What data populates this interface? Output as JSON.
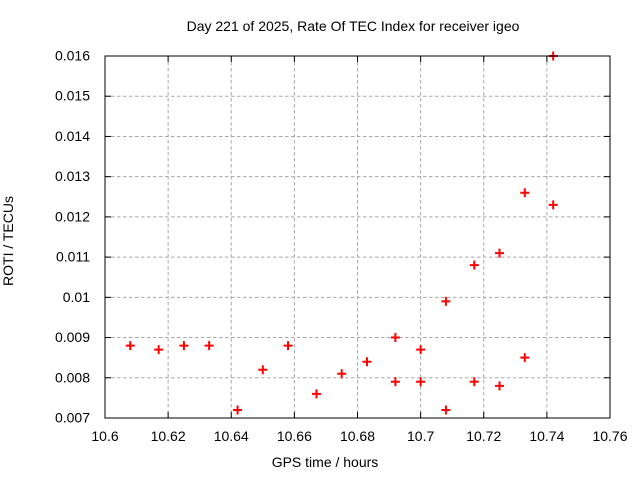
{
  "window": {
    "background": "#ffffff"
  },
  "chart_data": {
    "type": "scatter",
    "title": "Day 221 of 2025, Rate Of TEC Index for receiver igeo",
    "xlabel": "GPS time / hours",
    "ylabel": "ROTI / TECUs",
    "xlim": [
      10.6,
      10.76
    ],
    "ylim": [
      0.007,
      0.016
    ],
    "grid": true,
    "legend_position": "none",
    "xticks": [
      {
        "v": 10.6,
        "label": "10.6"
      },
      {
        "v": 10.62,
        "label": "10.62"
      },
      {
        "v": 10.64,
        "label": "10.64"
      },
      {
        "v": 10.66,
        "label": "10.66"
      },
      {
        "v": 10.68,
        "label": "10.68"
      },
      {
        "v": 10.7,
        "label": "10.7"
      },
      {
        "v": 10.72,
        "label": "10.72"
      },
      {
        "v": 10.74,
        "label": "10.74"
      },
      {
        "v": 10.76,
        "label": "10.76"
      }
    ],
    "yticks": [
      {
        "v": 0.007,
        "label": "0.007"
      },
      {
        "v": 0.008,
        "label": "0.008"
      },
      {
        "v": 0.009,
        "label": "0.009"
      },
      {
        "v": 0.01,
        "label": "0.01"
      },
      {
        "v": 0.011,
        "label": "0.011"
      },
      {
        "v": 0.012,
        "label": "0.012"
      },
      {
        "v": 0.013,
        "label": "0.013"
      },
      {
        "v": 0.014,
        "label": "0.014"
      },
      {
        "v": 0.015,
        "label": "0.015"
      },
      {
        "v": 0.016,
        "label": "0.016"
      }
    ],
    "series": [
      {
        "name": "ROTI",
        "marker": "plus",
        "points": [
          [
            10.608,
            0.0088
          ],
          [
            10.617,
            0.0087
          ],
          [
            10.625,
            0.0088
          ],
          [
            10.633,
            0.0088
          ],
          [
            10.642,
            0.0072
          ],
          [
            10.65,
            0.0082
          ],
          [
            10.658,
            0.0088
          ],
          [
            10.667,
            0.0076
          ],
          [
            10.675,
            0.0081
          ],
          [
            10.683,
            0.0084
          ],
          [
            10.692,
            0.009
          ],
          [
            10.692,
            0.0079
          ],
          [
            10.7,
            0.0087
          ],
          [
            10.7,
            0.0079
          ],
          [
            10.708,
            0.0099
          ],
          [
            10.708,
            0.0072
          ],
          [
            10.717,
            0.0108
          ],
          [
            10.717,
            0.0079
          ],
          [
            10.725,
            0.0111
          ],
          [
            10.725,
            0.0078
          ],
          [
            10.733,
            0.0126
          ],
          [
            10.733,
            0.0085
          ],
          [
            10.742,
            0.0123
          ],
          [
            10.742,
            0.016
          ]
        ]
      }
    ],
    "colors": {
      "marker": "#ff0000",
      "grid": "#a8a8a8",
      "axis": "#000000",
      "background": "#ffffff"
    }
  }
}
